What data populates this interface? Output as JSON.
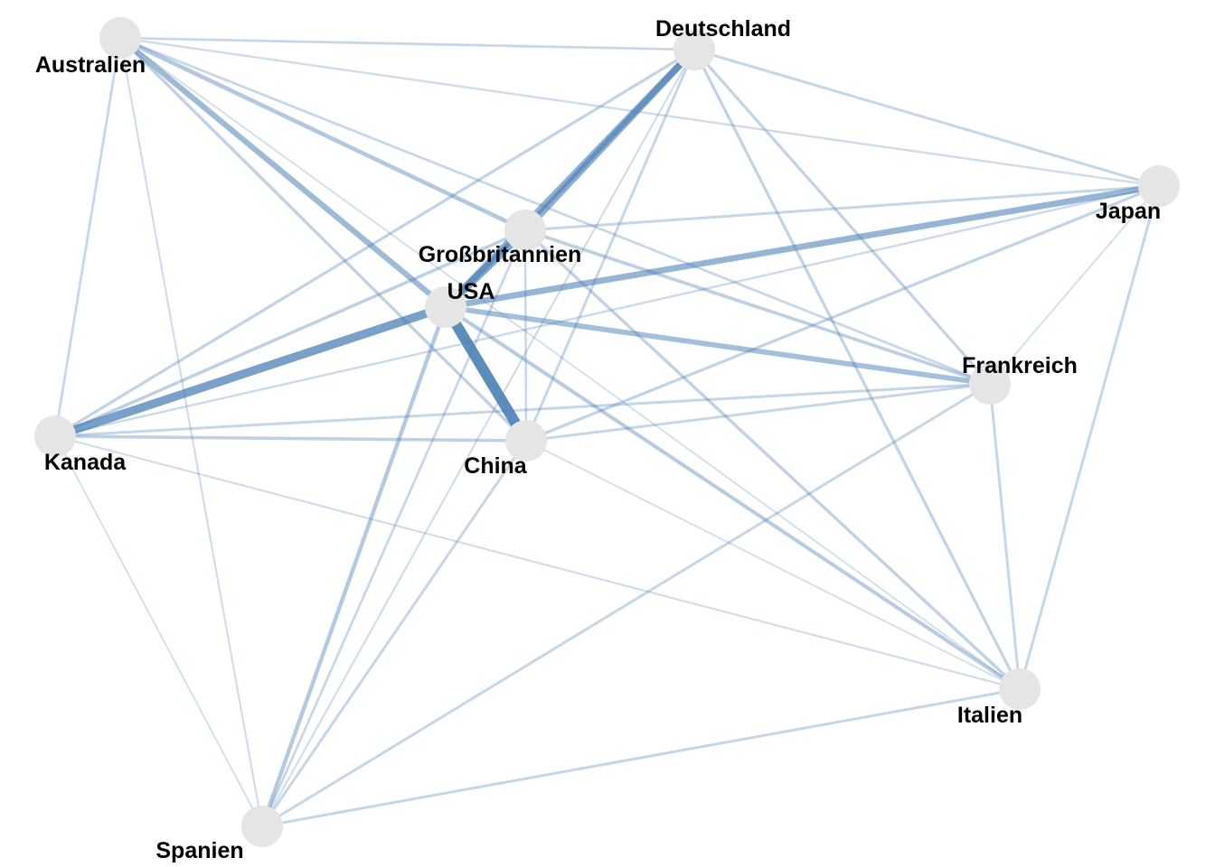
{
  "colors": {
    "background": "#ffffff",
    "node": "#e5e5e5",
    "edge": "#4a7fb5",
    "label": "#000000"
  },
  "nodes": [
    {
      "id": "australien",
      "label": "Australien"
    },
    {
      "id": "deutschland",
      "label": "Deutschland"
    },
    {
      "id": "japan",
      "label": "Japan"
    },
    {
      "id": "grossbritannien",
      "label": "Großbritannien"
    },
    {
      "id": "usa",
      "label": "USA"
    },
    {
      "id": "frankreich",
      "label": "Frankreich"
    },
    {
      "id": "kanada",
      "label": "Kanada"
    },
    {
      "id": "china",
      "label": "China"
    },
    {
      "id": "italien",
      "label": "Italien"
    },
    {
      "id": "spanien",
      "label": "Spanien"
    }
  ],
  "edges": [
    {
      "source": "usa",
      "target": "china",
      "weight": 1.0
    },
    {
      "source": "usa",
      "target": "kanada",
      "weight": 0.78
    },
    {
      "source": "usa",
      "target": "grossbritannien",
      "weight": 0.72
    },
    {
      "source": "deutschland",
      "target": "grossbritannien",
      "weight": 0.62
    },
    {
      "source": "usa",
      "target": "deutschland",
      "weight": 0.6
    },
    {
      "source": "usa",
      "target": "japan",
      "weight": 0.55
    },
    {
      "source": "australien",
      "target": "usa",
      "weight": 0.5
    },
    {
      "source": "usa",
      "target": "frankreich",
      "weight": 0.45
    },
    {
      "source": "australien",
      "target": "grossbritannien",
      "weight": 0.35
    },
    {
      "source": "usa",
      "target": "spanien",
      "weight": 0.33
    },
    {
      "source": "usa",
      "target": "italien",
      "weight": 0.3
    },
    {
      "source": "grossbritannien",
      "target": "frankreich",
      "weight": 0.26
    },
    {
      "source": "kanada",
      "target": "grossbritannien",
      "weight": 0.25
    },
    {
      "source": "kanada",
      "target": "china",
      "weight": 0.25
    },
    {
      "source": "grossbritannien",
      "target": "italien",
      "weight": 0.24
    },
    {
      "source": "australien",
      "target": "china",
      "weight": 0.24
    },
    {
      "source": "kanada",
      "target": "deutschland",
      "weight": 0.22
    },
    {
      "source": "deutschland",
      "target": "italien",
      "weight": 0.22
    },
    {
      "source": "deutschland",
      "target": "frankreich",
      "weight": 0.22
    },
    {
      "source": "china",
      "target": "japan",
      "weight": 0.22
    },
    {
      "source": "deutschland",
      "target": "china",
      "weight": 0.2
    },
    {
      "source": "deutschland",
      "target": "japan",
      "weight": 0.2
    },
    {
      "source": "grossbritannien",
      "target": "japan",
      "weight": 0.2
    },
    {
      "source": "kanada",
      "target": "frankreich",
      "weight": 0.2
    },
    {
      "source": "china",
      "target": "frankreich",
      "weight": 0.2
    },
    {
      "source": "frankreich",
      "target": "italien",
      "weight": 0.2
    },
    {
      "source": "japan",
      "target": "italien",
      "weight": 0.2
    },
    {
      "source": "spanien",
      "target": "italien",
      "weight": 0.2
    },
    {
      "source": "spanien",
      "target": "frankreich",
      "weight": 0.2
    },
    {
      "source": "spanien",
      "target": "china",
      "weight": 0.2
    },
    {
      "source": "spanien",
      "target": "grossbritannien",
      "weight": 0.18
    },
    {
      "source": "kanada",
      "target": "australien",
      "weight": 0.18
    },
    {
      "source": "australien",
      "target": "deutschland",
      "weight": 0.18
    },
    {
      "source": "australien",
      "target": "frankreich",
      "weight": 0.18
    },
    {
      "source": "grossbritannien",
      "target": "china",
      "weight": 0.16
    },
    {
      "source": "japan",
      "target": "kanada",
      "weight": 0.15
    },
    {
      "source": "australien",
      "target": "japan",
      "weight": 0.14
    },
    {
      "source": "australien",
      "target": "spanien",
      "weight": 0.12
    },
    {
      "source": "spanien",
      "target": "deutschland",
      "weight": 0.12
    },
    {
      "source": "kanada",
      "target": "italien",
      "weight": 0.12
    },
    {
      "source": "kanada",
      "target": "spanien",
      "weight": 0.1
    },
    {
      "source": "china",
      "target": "italien",
      "weight": 0.1
    },
    {
      "source": "japan",
      "target": "frankreich",
      "weight": 0.1
    },
    {
      "source": "australien",
      "target": "italien",
      "weight": 0.1
    }
  ]
}
